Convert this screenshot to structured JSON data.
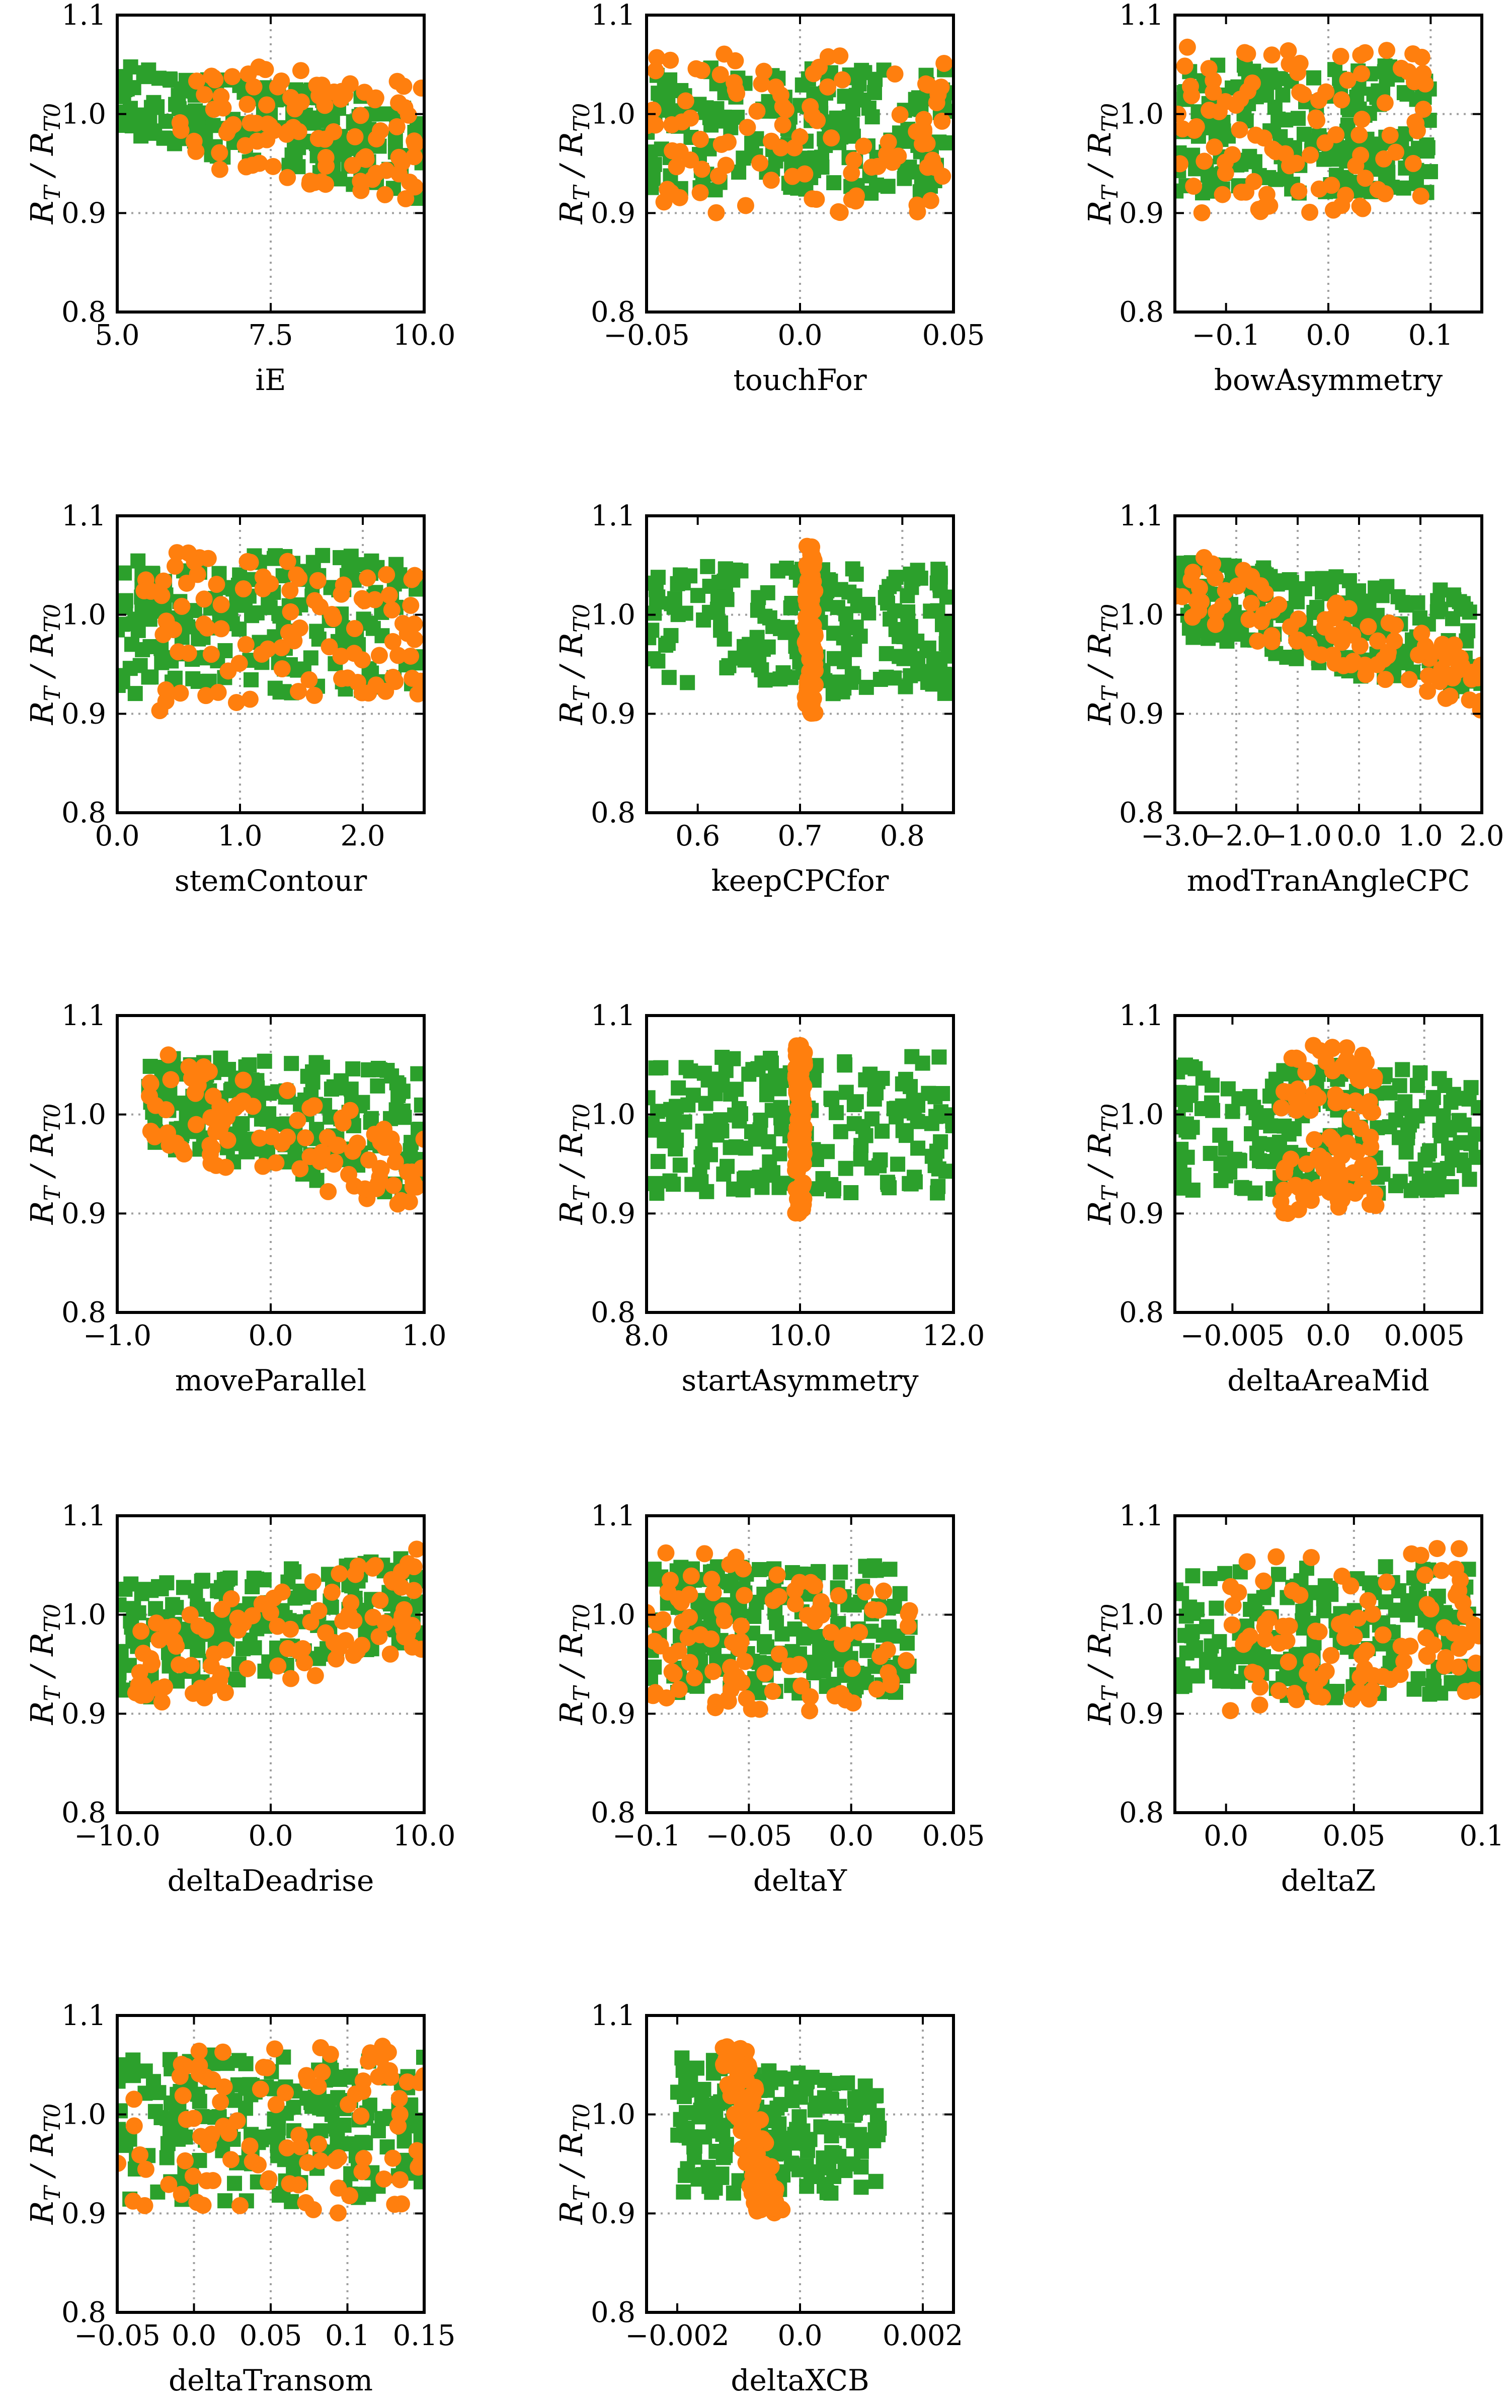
{
  "figure": {
    "colors": {
      "green": "#2ca02c",
      "orange": "#ff7f0e"
    },
    "ylabel": {
      "main_r": "R",
      "sub_t": "T",
      "slash": " / ",
      "main_r2": "R",
      "sub_t0": "T0"
    },
    "series_names": [
      "green squares",
      "orange circles"
    ]
  },
  "chart_data": [
    {
      "type": "scatter",
      "xlabel": "iE",
      "xlim": [
        5.0,
        10.0
      ],
      "xticks": [
        5.0,
        7.5,
        10.0
      ],
      "xtick_labels": [
        "5.0",
        "7.5",
        "10.0"
      ],
      "xgrid": [
        7.5
      ],
      "ylim": [
        0.8,
        1.1
      ],
      "yticks": [
        0.8,
        0.9,
        1.0,
        1.1
      ],
      "ytick_labels": [
        "0.8",
        "0.9",
        "1.0",
        "1.1"
      ],
      "ygrid": [
        0.9,
        1.0
      ],
      "series": [
        {
          "name": "green",
          "marker": "square",
          "pattern": "uniform",
          "x_range": [
            5.0,
            10.0
          ],
          "y_start": [
            0.98,
            1.05
          ],
          "y_end": [
            0.91,
            1.01
          ],
          "n": 200
        },
        {
          "name": "orange",
          "marker": "circle",
          "pattern": "uniform",
          "x_range": [
            6.0,
            10.0
          ],
          "y_start": [
            0.95,
            1.06
          ],
          "y_end": [
            0.91,
            1.03
          ],
          "n": 100
        }
      ]
    },
    {
      "type": "scatter",
      "xlabel": "touchFor",
      "xlim": [
        -0.05,
        0.05
      ],
      "xticks": [
        -0.05,
        0.0,
        0.05
      ],
      "xtick_labels": [
        "−0.05",
        "0.0",
        "0.05"
      ],
      "xgrid": [
        0.0
      ],
      "ylim": [
        0.8,
        1.1
      ],
      "yticks": [
        0.8,
        0.9,
        1.0,
        1.1
      ],
      "ytick_labels": [
        "0.8",
        "0.9",
        "1.0",
        "1.1"
      ],
      "ygrid": [
        0.9,
        1.0
      ],
      "series": [
        {
          "name": "green",
          "marker": "square",
          "pattern": "uniform",
          "x_range": [
            -0.05,
            0.05
          ],
          "y_start": [
            0.92,
            1.05
          ],
          "y_end": [
            0.92,
            1.05
          ],
          "n": 200
        },
        {
          "name": "orange",
          "marker": "circle",
          "pattern": "uniform",
          "x_range": [
            -0.05,
            0.05
          ],
          "y_start": [
            0.9,
            1.07
          ],
          "y_end": [
            0.9,
            1.06
          ],
          "n": 100
        }
      ]
    },
    {
      "type": "scatter",
      "xlabel": "bowAsymmetry",
      "xlim": [
        -0.15,
        0.15
      ],
      "xticks": [
        -0.1,
        0.0,
        0.1
      ],
      "xtick_labels": [
        "−0.1",
        "0.0",
        "0.1"
      ],
      "xgrid": [
        0.0,
        0.1
      ],
      "ylim": [
        0.8,
        1.1
      ],
      "yticks": [
        0.8,
        0.9,
        1.0,
        1.1
      ],
      "ytick_labels": [
        "0.8",
        "0.9",
        "1.0",
        "1.1"
      ],
      "ygrid": [
        0.9,
        1.0
      ],
      "series": [
        {
          "name": "green",
          "marker": "square",
          "pattern": "uniform",
          "x_range": [
            -0.15,
            0.1
          ],
          "y_start": [
            0.92,
            1.05
          ],
          "y_end": [
            0.92,
            1.05
          ],
          "n": 200
        },
        {
          "name": "orange",
          "marker": "circle",
          "pattern": "uniform",
          "x_range": [
            -0.15,
            0.1
          ],
          "y_start": [
            0.9,
            1.07
          ],
          "y_end": [
            0.9,
            1.07
          ],
          "n": 100
        }
      ]
    },
    {
      "type": "scatter",
      "xlabel": "stemContour",
      "xlim": [
        0.0,
        2.5
      ],
      "xticks": [
        0.0,
        1.0,
        2.0
      ],
      "xtick_labels": [
        "0.0",
        "1.0",
        "2.0"
      ],
      "xgrid": [
        1.0,
        2.0
      ],
      "ylim": [
        0.8,
        1.1
      ],
      "yticks": [
        0.8,
        0.9,
        1.0,
        1.1
      ],
      "ytick_labels": [
        "0.8",
        "0.9",
        "1.0",
        "1.1"
      ],
      "ygrid": [
        0.9,
        1.0
      ],
      "series": [
        {
          "name": "green",
          "marker": "square",
          "pattern": "uniform",
          "x_range": [
            0.0,
            2.5
          ],
          "y_start": [
            0.92,
            1.06
          ],
          "y_end": [
            0.92,
            1.06
          ],
          "n": 200
        },
        {
          "name": "orange",
          "marker": "circle",
          "pattern": "uniform",
          "x_range": [
            0.2,
            2.5
          ],
          "y_start": [
            0.9,
            1.07
          ],
          "y_end": [
            0.92,
            1.04
          ],
          "n": 100
        }
      ]
    },
    {
      "type": "scatter",
      "xlabel": "keepCPCfor",
      "xlim": [
        0.55,
        0.85
      ],
      "xticks": [
        0.6,
        0.7,
        0.8
      ],
      "xtick_labels": [
        "0.6",
        "0.7",
        "0.8"
      ],
      "xgrid": [
        0.7,
        0.8
      ],
      "ylim": [
        0.8,
        1.1
      ],
      "yticks": [
        0.8,
        0.9,
        1.0,
        1.1
      ],
      "ytick_labels": [
        "0.8",
        "0.9",
        "1.0",
        "1.1"
      ],
      "ygrid": [
        0.9,
        1.0
      ],
      "series": [
        {
          "name": "green",
          "marker": "square",
          "pattern": "uniform",
          "x_range": [
            0.55,
            0.85
          ],
          "y_start": [
            0.92,
            1.05
          ],
          "y_end": [
            0.92,
            1.05
          ],
          "n": 200
        },
        {
          "name": "orange",
          "marker": "circle",
          "pattern": "uniform",
          "x_range": [
            0.705,
            0.715
          ],
          "y_start": [
            0.9,
            1.07
          ],
          "y_end": [
            0.9,
            1.07
          ],
          "n": 100
        }
      ]
    },
    {
      "type": "scatter",
      "xlabel": "modTranAngleCPC",
      "xlim": [
        -3.0,
        2.0
      ],
      "xticks": [
        -3.0,
        -2.0,
        -1.0,
        0.0,
        1.0,
        2.0
      ],
      "xtick_labels": [
        "−3.0",
        "−2.0",
        "−1.0",
        "0.0",
        "1.0",
        "2.0"
      ],
      "xgrid": [
        -2.0,
        -1.0,
        0.0,
        1.0
      ],
      "ylim": [
        0.8,
        1.1
      ],
      "yticks": [
        0.8,
        0.9,
        1.0,
        1.1
      ],
      "ytick_labels": [
        "0.8",
        "0.9",
        "1.0",
        "1.1"
      ],
      "ygrid": [
        0.9,
        1.0
      ],
      "series": [
        {
          "name": "green",
          "marker": "square",
          "pattern": "uniform",
          "x_range": [
            -3.0,
            2.0
          ],
          "y_start": [
            0.98,
            1.06
          ],
          "y_end": [
            0.91,
            1.02
          ],
          "n": 200
        },
        {
          "name": "orange",
          "marker": "circle",
          "pattern": "uniform",
          "x_range": [
            -3.0,
            2.0
          ],
          "y_start": [
            1.0,
            1.07
          ],
          "y_end": [
            0.9,
            0.96
          ],
          "n": 100
        }
      ]
    },
    {
      "type": "scatter",
      "xlabel": "moveParallel",
      "xlim": [
        -1.0,
        1.0
      ],
      "xticks": [
        -1.0,
        0.0,
        1.0
      ],
      "xtick_labels": [
        "−1.0",
        "0.0",
        "1.0"
      ],
      "xgrid": [
        0.0
      ],
      "ylim": [
        0.8,
        1.1
      ],
      "yticks": [
        0.8,
        0.9,
        1.0,
        1.1
      ],
      "ytick_labels": [
        "0.8",
        "0.9",
        "1.0",
        "1.1"
      ],
      "ygrid": [
        0.9,
        1.0
      ],
      "series": [
        {
          "name": "green",
          "marker": "square",
          "pattern": "uniform",
          "x_range": [
            -0.8,
            1.0
          ],
          "y_start": [
            0.97,
            1.06
          ],
          "y_end": [
            0.91,
            1.05
          ],
          "n": 200
        },
        {
          "name": "orange",
          "marker": "circle",
          "pattern": "uniform",
          "x_range": [
            -0.8,
            1.0
          ],
          "y_start": [
            0.96,
            1.07
          ],
          "y_end": [
            0.9,
            0.98
          ],
          "n": 100
        }
      ]
    },
    {
      "type": "scatter",
      "xlabel": "startAsymmetry",
      "xlim": [
        8.0,
        12.0
      ],
      "xticks": [
        8.0,
        10.0,
        12.0
      ],
      "xtick_labels": [
        "8.0",
        "10.0",
        "12.0"
      ],
      "xgrid": [
        10.0
      ],
      "ylim": [
        0.8,
        1.1
      ],
      "yticks": [
        0.8,
        0.9,
        1.0,
        1.1
      ],
      "ytick_labels": [
        "0.8",
        "0.9",
        "1.0",
        "1.1"
      ],
      "ygrid": [
        0.9,
        1.0
      ],
      "series": [
        {
          "name": "green",
          "marker": "square",
          "pattern": "uniform",
          "x_range": [
            8.0,
            12.0
          ],
          "y_start": [
            0.92,
            1.06
          ],
          "y_end": [
            0.92,
            1.06
          ],
          "n": 200
        },
        {
          "name": "orange",
          "marker": "circle",
          "pattern": "uniform",
          "x_range": [
            9.94,
            10.06
          ],
          "y_start": [
            0.9,
            1.07
          ],
          "y_end": [
            0.9,
            1.07
          ],
          "n": 100
        }
      ]
    },
    {
      "type": "scatter",
      "xlabel": "deltaAreaMid",
      "xlim": [
        -0.008,
        0.008
      ],
      "xticks": [
        -0.005,
        0.0,
        0.005
      ],
      "xtick_labels": [
        "−0.005",
        "0.0",
        "0.005"
      ],
      "xgrid": [
        0.0,
        0.005
      ],
      "ylim": [
        0.8,
        1.1
      ],
      "yticks": [
        0.8,
        0.9,
        1.0,
        1.1
      ],
      "ytick_labels": [
        "0.8",
        "0.9",
        "1.0",
        "1.1"
      ],
      "ygrid": [
        0.9,
        1.0
      ],
      "series": [
        {
          "name": "green",
          "marker": "square",
          "pattern": "uniform",
          "x_range": [
            -0.008,
            0.008
          ],
          "y_start": [
            0.92,
            1.05
          ],
          "y_end": [
            0.92,
            1.05
          ],
          "n": 200
        },
        {
          "name": "orange",
          "marker": "circle",
          "pattern": "uniform",
          "x_range": [
            -0.0025,
            0.0025
          ],
          "y_start": [
            0.9,
            1.07
          ],
          "y_end": [
            0.9,
            1.07
          ],
          "n": 100
        }
      ]
    },
    {
      "type": "scatter",
      "xlabel": "deltaDeadrise",
      "xlim": [
        -10.0,
        10.0
      ],
      "xticks": [
        -10.0,
        0.0,
        10.0
      ],
      "xtick_labels": [
        "−10.0",
        "0.0",
        "10.0"
      ],
      "xgrid": [
        0.0
      ],
      "ylim": [
        0.8,
        1.1
      ],
      "yticks": [
        0.8,
        0.9,
        1.0,
        1.1
      ],
      "ytick_labels": [
        "0.8",
        "0.9",
        "1.0",
        "1.1"
      ],
      "ygrid": [
        0.9,
        1.0
      ],
      "series": [
        {
          "name": "green",
          "marker": "square",
          "pattern": "uniform",
          "x_range": [
            -10.0,
            10.0
          ],
          "y_start": [
            0.91,
            1.03
          ],
          "y_end": [
            0.97,
            1.06
          ],
          "n": 200
        },
        {
          "name": "orange",
          "marker": "circle",
          "pattern": "uniform",
          "x_range": [
            -9.0,
            10.0
          ],
          "y_start": [
            0.9,
            0.99
          ],
          "y_end": [
            0.96,
            1.07
          ],
          "n": 100
        }
      ]
    },
    {
      "type": "scatter",
      "xlabel": "deltaY",
      "xlim": [
        -0.1,
        0.05
      ],
      "xticks": [
        -0.1,
        -0.05,
        0.0,
        0.05
      ],
      "xtick_labels": [
        "−0.1",
        "−0.05",
        "0.0",
        "0.05"
      ],
      "xgrid": [
        -0.05,
        0.0
      ],
      "ylim": [
        0.8,
        1.1
      ],
      "yticks": [
        0.8,
        0.9,
        1.0,
        1.1
      ],
      "ytick_labels": [
        "0.8",
        "0.9",
        "1.0",
        "1.1"
      ],
      "ygrid": [
        0.9,
        1.0
      ],
      "series": [
        {
          "name": "green",
          "marker": "square",
          "pattern": "uniform",
          "x_range": [
            -0.1,
            0.03
          ],
          "y_start": [
            0.92,
            1.05
          ],
          "y_end": [
            0.92,
            1.05
          ],
          "n": 200
        },
        {
          "name": "orange",
          "marker": "circle",
          "pattern": "uniform",
          "x_range": [
            -0.1,
            0.03
          ],
          "y_start": [
            0.9,
            1.07
          ],
          "y_end": [
            0.9,
            1.04
          ],
          "n": 100
        }
      ]
    },
    {
      "type": "scatter",
      "xlabel": "deltaZ",
      "xlim": [
        -0.02,
        0.1
      ],
      "xticks": [
        0.0,
        0.05,
        0.1
      ],
      "xtick_labels": [
        "0.0",
        "0.05",
        "0.1"
      ],
      "xgrid": [
        0.05
      ],
      "ylim": [
        0.8,
        1.1
      ],
      "yticks": [
        0.8,
        0.9,
        1.0,
        1.1
      ],
      "ytick_labels": [
        "0.8",
        "0.9",
        "1.0",
        "1.1"
      ],
      "ygrid": [
        0.9,
        1.0
      ],
      "series": [
        {
          "name": "green",
          "marker": "square",
          "pattern": "uniform",
          "x_range": [
            -0.02,
            0.1
          ],
          "y_start": [
            0.91,
            1.05
          ],
          "y_end": [
            0.92,
            1.05
          ],
          "n": 200
        },
        {
          "name": "orange",
          "marker": "circle",
          "pattern": "uniform",
          "x_range": [
            0.0,
            0.1
          ],
          "y_start": [
            0.9,
            1.06
          ],
          "y_end": [
            0.92,
            1.07
          ],
          "n": 100
        }
      ]
    },
    {
      "type": "scatter",
      "xlabel": "deltaTransom",
      "xlim": [
        -0.05,
        0.15
      ],
      "xticks": [
        -0.05,
        0.0,
        0.05,
        0.1,
        0.15
      ],
      "xtick_labels": [
        "−0.05",
        "0.0",
        "0.05",
        "0.1",
        "0.15"
      ],
      "xgrid": [
        0.0,
        0.05,
        0.1
      ],
      "ylim": [
        0.8,
        1.1
      ],
      "yticks": [
        0.8,
        0.9,
        1.0,
        1.1
      ],
      "ytick_labels": [
        "0.8",
        "0.9",
        "1.0",
        "1.1"
      ],
      "ygrid": [
        0.9,
        1.0
      ],
      "series": [
        {
          "name": "green",
          "marker": "square",
          "pattern": "uniform",
          "x_range": [
            -0.05,
            0.15
          ],
          "y_start": [
            0.91,
            1.06
          ],
          "y_end": [
            0.91,
            1.06
          ],
          "n": 200
        },
        {
          "name": "orange",
          "marker": "circle",
          "pattern": "uniform",
          "x_range": [
            -0.05,
            0.15
          ],
          "y_start": [
            0.9,
            1.07
          ],
          "y_end": [
            0.9,
            1.07
          ],
          "n": 100
        }
      ]
    },
    {
      "type": "scatter",
      "xlabel": "deltaXCB",
      "xlim": [
        -0.0025,
        0.0025
      ],
      "xticks": [
        -0.002,
        0.0,
        0.002
      ],
      "xtick_labels": [
        "−0.002",
        "0.0",
        "0.002"
      ],
      "xgrid": [
        0.0,
        0.002
      ],
      "ylim": [
        0.8,
        1.1
      ],
      "yticks": [
        0.8,
        0.9,
        1.0,
        1.1
      ],
      "ytick_labels": [
        "0.8",
        "0.9",
        "1.0",
        "1.1"
      ],
      "ygrid": [
        0.9,
        1.0
      ],
      "series": [
        {
          "name": "green",
          "marker": "square",
          "pattern": "uniform",
          "x_range": [
            -0.002,
            0.0013
          ],
          "y_start": [
            0.92,
            1.06
          ],
          "y_end": [
            0.92,
            1.03
          ],
          "n": 200
        },
        {
          "name": "orange",
          "marker": "circle",
          "pattern": "band",
          "x_center_start": -0.0011,
          "x_center_end": -0.0005,
          "x_halfwidth": 0.00022,
          "y_range": [
            0.9,
            1.07
          ],
          "n": 100
        }
      ]
    }
  ]
}
